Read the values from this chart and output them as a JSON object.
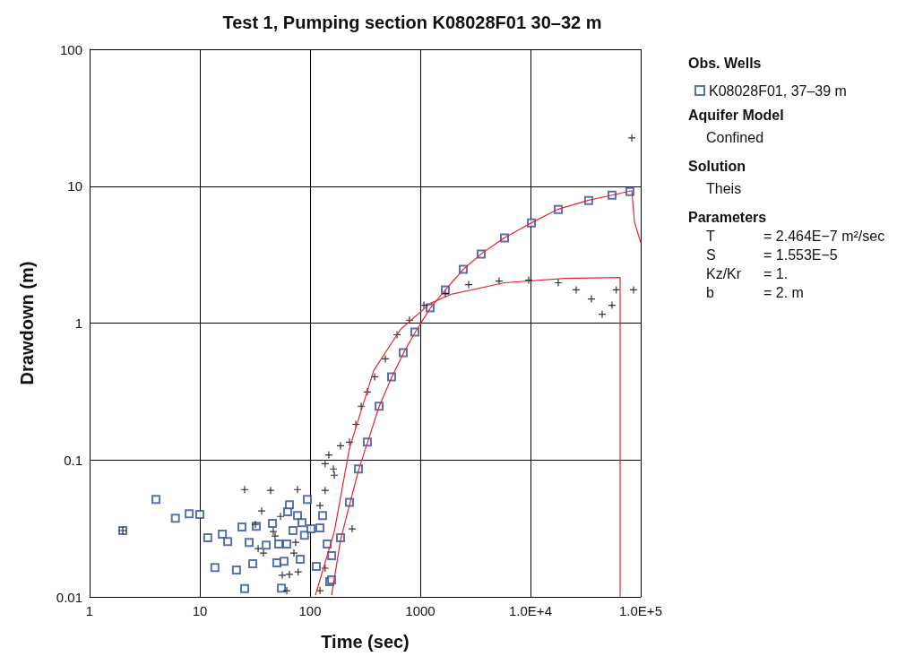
{
  "chart_data": {
    "type": "scatter",
    "title": "Test 1, Pumping section K08028F01 30–32 m",
    "xlabel": "Time (sec)",
    "ylabel": "Drawdown (m)",
    "legend_title": "Obs. Wells",
    "log": "xy",
    "grid": true,
    "legend": "right",
    "xlim": [
      1,
      100000
    ],
    "xticks": [
      1,
      10,
      100,
      1000,
      {
        "value": 10000,
        "label": "1.0E+4"
      },
      {
        "value": 100000,
        "label": "1.0E+5"
      }
    ],
    "ylim": [
      0.01,
      100
    ],
    "yticks": [
      0.01,
      0.1,
      1,
      10,
      100
    ],
    "series": [
      {
        "name": "K08028F01, 37–39 m",
        "color": "#2e4fa0",
        "marker": "square",
        "x": [
          2,
          4,
          6,
          8,
          10,
          11.8,
          16,
          17.9,
          13.7,
          21.5,
          25.5,
          24.1,
          28,
          30.2,
          32.5,
          40,
          45.6,
          50,
          58,
          55,
          52,
          61.5,
          62.6,
          65,
          70,
          77,
          81.5,
          84.5,
          94.6,
          89,
          102,
          114,
          123,
          130,
          143,
          151,
          157,
          157,
          189,
          228,
          275,
          331,
          423,
          549,
          701,
          894,
          1228,
          1690,
          2455,
          3570,
          5810,
          10190,
          17870,
          33700,
          54900,
          79800
        ],
        "values": [
          0.0305,
          0.0515,
          0.0376,
          0.0405,
          0.04,
          0.027,
          0.0287,
          0.0254,
          0.0164,
          0.0157,
          0.0115,
          0.0324,
          0.025,
          0.0175,
          0.0328,
          0.0239,
          0.0344,
          0.0177,
          0.0182,
          0.0116,
          0.0243,
          0.0243,
          0.0418,
          0.047,
          0.0305,
          0.0393,
          0.0188,
          0.0348,
          0.0515,
          0.0282,
          0.0314,
          0.0167,
          0.0319,
          0.0393,
          0.0243,
          0.0129,
          0.02,
          0.0133,
          0.027,
          0.049,
          0.086,
          0.135,
          0.247,
          0.405,
          0.608,
          0.86,
          1.29,
          1.75,
          2.47,
          3.19,
          4.18,
          5.4,
          6.77,
          7.86,
          8.6,
          9.14
        ]
      },
      {
        "color": "#000000",
        "marker": "cross",
        "x": [
          2,
          25.5,
          43.9,
          77,
          36.4,
          54,
          31.9,
          46.4,
          48.2,
          33.8,
          37.8,
          74,
          71.4,
          56,
          65,
          78,
          61.5,
          123,
          137,
          148,
          137,
          123,
          163,
          241,
          137,
          189,
          166,
          228,
          260,
          291,
          331,
          385,
          482,
          615,
          798,
          1079,
          1690,
          2750,
          5190,
          9630,
          17870,
          26000,
          35700,
          44700,
          54900,
          60000,
          86100,
          83000
        ],
        "values": [
          0.0305,
          0.0608,
          0.06,
          0.0608,
          0.0424,
          0.0387,
          0.0338,
          0.03,
          0.0278,
          0.0225,
          0.0209,
          0.025,
          0.0209,
          0.0144,
          0.0146,
          0.0152,
          0.0111,
          0.0111,
          0.06,
          0.109,
          0.094,
          0.0464,
          0.086,
          0.0314,
          0.0162,
          0.127,
          0.0774,
          0.135,
          0.182,
          0.247,
          0.314,
          0.405,
          0.548,
          0.822,
          1.05,
          1.35,
          1.64,
          1.91,
          2.03,
          2.06,
          1.97,
          1.75,
          1.5,
          1.16,
          1.35,
          1.75,
          1.75,
          22.5
        ]
      },
      {
        "type": "line",
        "color": "#e8262a",
        "marker": "none",
        "x": [
          112,
          166,
          228,
          378,
          662,
          1228,
          1890,
          5810,
          20400,
          65000,
          65000
        ],
        "values": [
          0.0103,
          0.03,
          0.122,
          0.451,
          0.9,
          1.39,
          1.62,
          1.97,
          2.12,
          2.15,
          0.01
        ]
      },
      {
        "type": "line",
        "color": "#e8262a",
        "marker": "none",
        "x": [
          157,
          189,
          228,
          275,
          331,
          423,
          549,
          701,
          894,
          1228,
          1690,
          2455,
          3570,
          5810,
          10190,
          17870,
          33700,
          54900,
          83000,
          87800,
          100000
        ],
        "values": [
          0.0103,
          0.026,
          0.047,
          0.084,
          0.133,
          0.245,
          0.4,
          0.6,
          0.85,
          1.28,
          1.75,
          2.47,
          3.2,
          4.2,
          5.4,
          6.8,
          7.9,
          8.6,
          9.27,
          5.48,
          3.87
        ]
      }
    ],
    "annotations": [
      "Aquifer Model",
      "Confined",
      "Solution",
      "Theis",
      "Parameters",
      "T = 2.464E−7 m²/sec",
      "S = 1.553E−5",
      "Kz/Kr = 1.",
      "b = 2. m"
    ]
  }
}
